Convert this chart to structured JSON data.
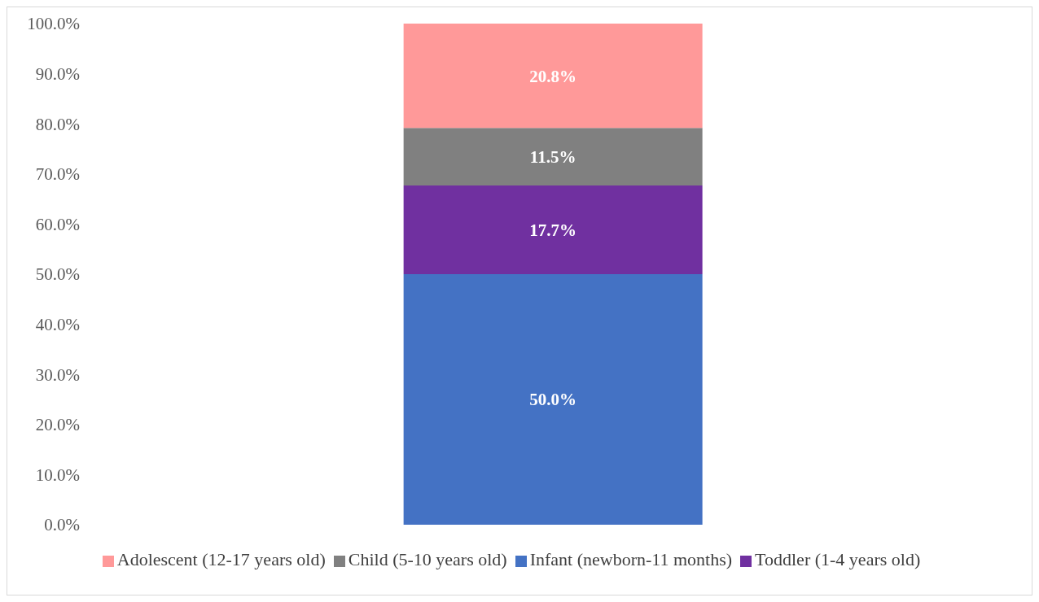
{
  "chart_data": {
    "type": "bar",
    "stacked": true,
    "categories": [
      null
    ],
    "series": [
      {
        "name": "Infant (newborn-11 months)",
        "color": "#4472c4",
        "values": [
          50.0
        ],
        "value_labels": [
          "50.0%"
        ]
      },
      {
        "name": "Toddler (1-4 years old)",
        "color": "#7030a0",
        "values": [
          17.7
        ],
        "value_labels": [
          "17.7%"
        ]
      },
      {
        "name": "Child (5-10 years old)",
        "color": "#808080",
        "values": [
          11.5
        ],
        "value_labels": [
          "11.5%"
        ]
      },
      {
        "name": "Adolescent (12-17 years old)",
        "color": "#ff9999",
        "values": [
          20.8
        ],
        "value_labels": [
          "20.8%"
        ]
      }
    ],
    "ylim": [
      0,
      100
    ],
    "yticks": [
      {
        "value": 0,
        "label": "0.0%"
      },
      {
        "value": 10,
        "label": "10.0%"
      },
      {
        "value": 20,
        "label": "20.0%"
      },
      {
        "value": 30,
        "label": "30.0%"
      },
      {
        "value": 40,
        "label": "40.0%"
      },
      {
        "value": 50,
        "label": "50.0%"
      },
      {
        "value": 60,
        "label": "60.0%"
      },
      {
        "value": 70,
        "label": "70.0%"
      },
      {
        "value": 80,
        "label": "80.0%"
      },
      {
        "value": 90,
        "label": "90.0%"
      },
      {
        "value": 100,
        "label": "100.0%"
      }
    ],
    "grid": false,
    "legend": "bottom"
  }
}
